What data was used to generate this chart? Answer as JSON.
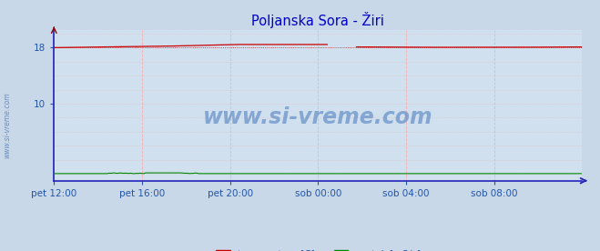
{
  "title": "Poljanska Sora - Žiri",
  "title_color": "#0000cc",
  "fig_bg_color": "#c8d8e8",
  "plot_bg_color": "#d0e0ee",
  "grid_color": "#ddaaaa",
  "xlabel_color": "#2255aa",
  "ylabel_color": "#2255aa",
  "watermark": "www.si-vreme.com",
  "watermark_color": "#4477bb",
  "sidewater_color": "#4477bb",
  "x_ticks_labels": [
    "pet 12:00",
    "pet 16:00",
    "pet 20:00",
    "sob 00:00",
    "sob 04:00",
    "sob 08:00"
  ],
  "x_ticks_positions": [
    0,
    48,
    96,
    144,
    192,
    240
  ],
  "y_ticks": [
    10,
    18
  ],
  "ylim": [
    -1,
    20.5
  ],
  "xlim": [
    0,
    288
  ],
  "temp_color": "#cc0000",
  "flow_color": "#008800",
  "axis_color": "#2222bb",
  "n_points": 289,
  "figsize": [
    6.59,
    2.76
  ],
  "dpi": 100
}
